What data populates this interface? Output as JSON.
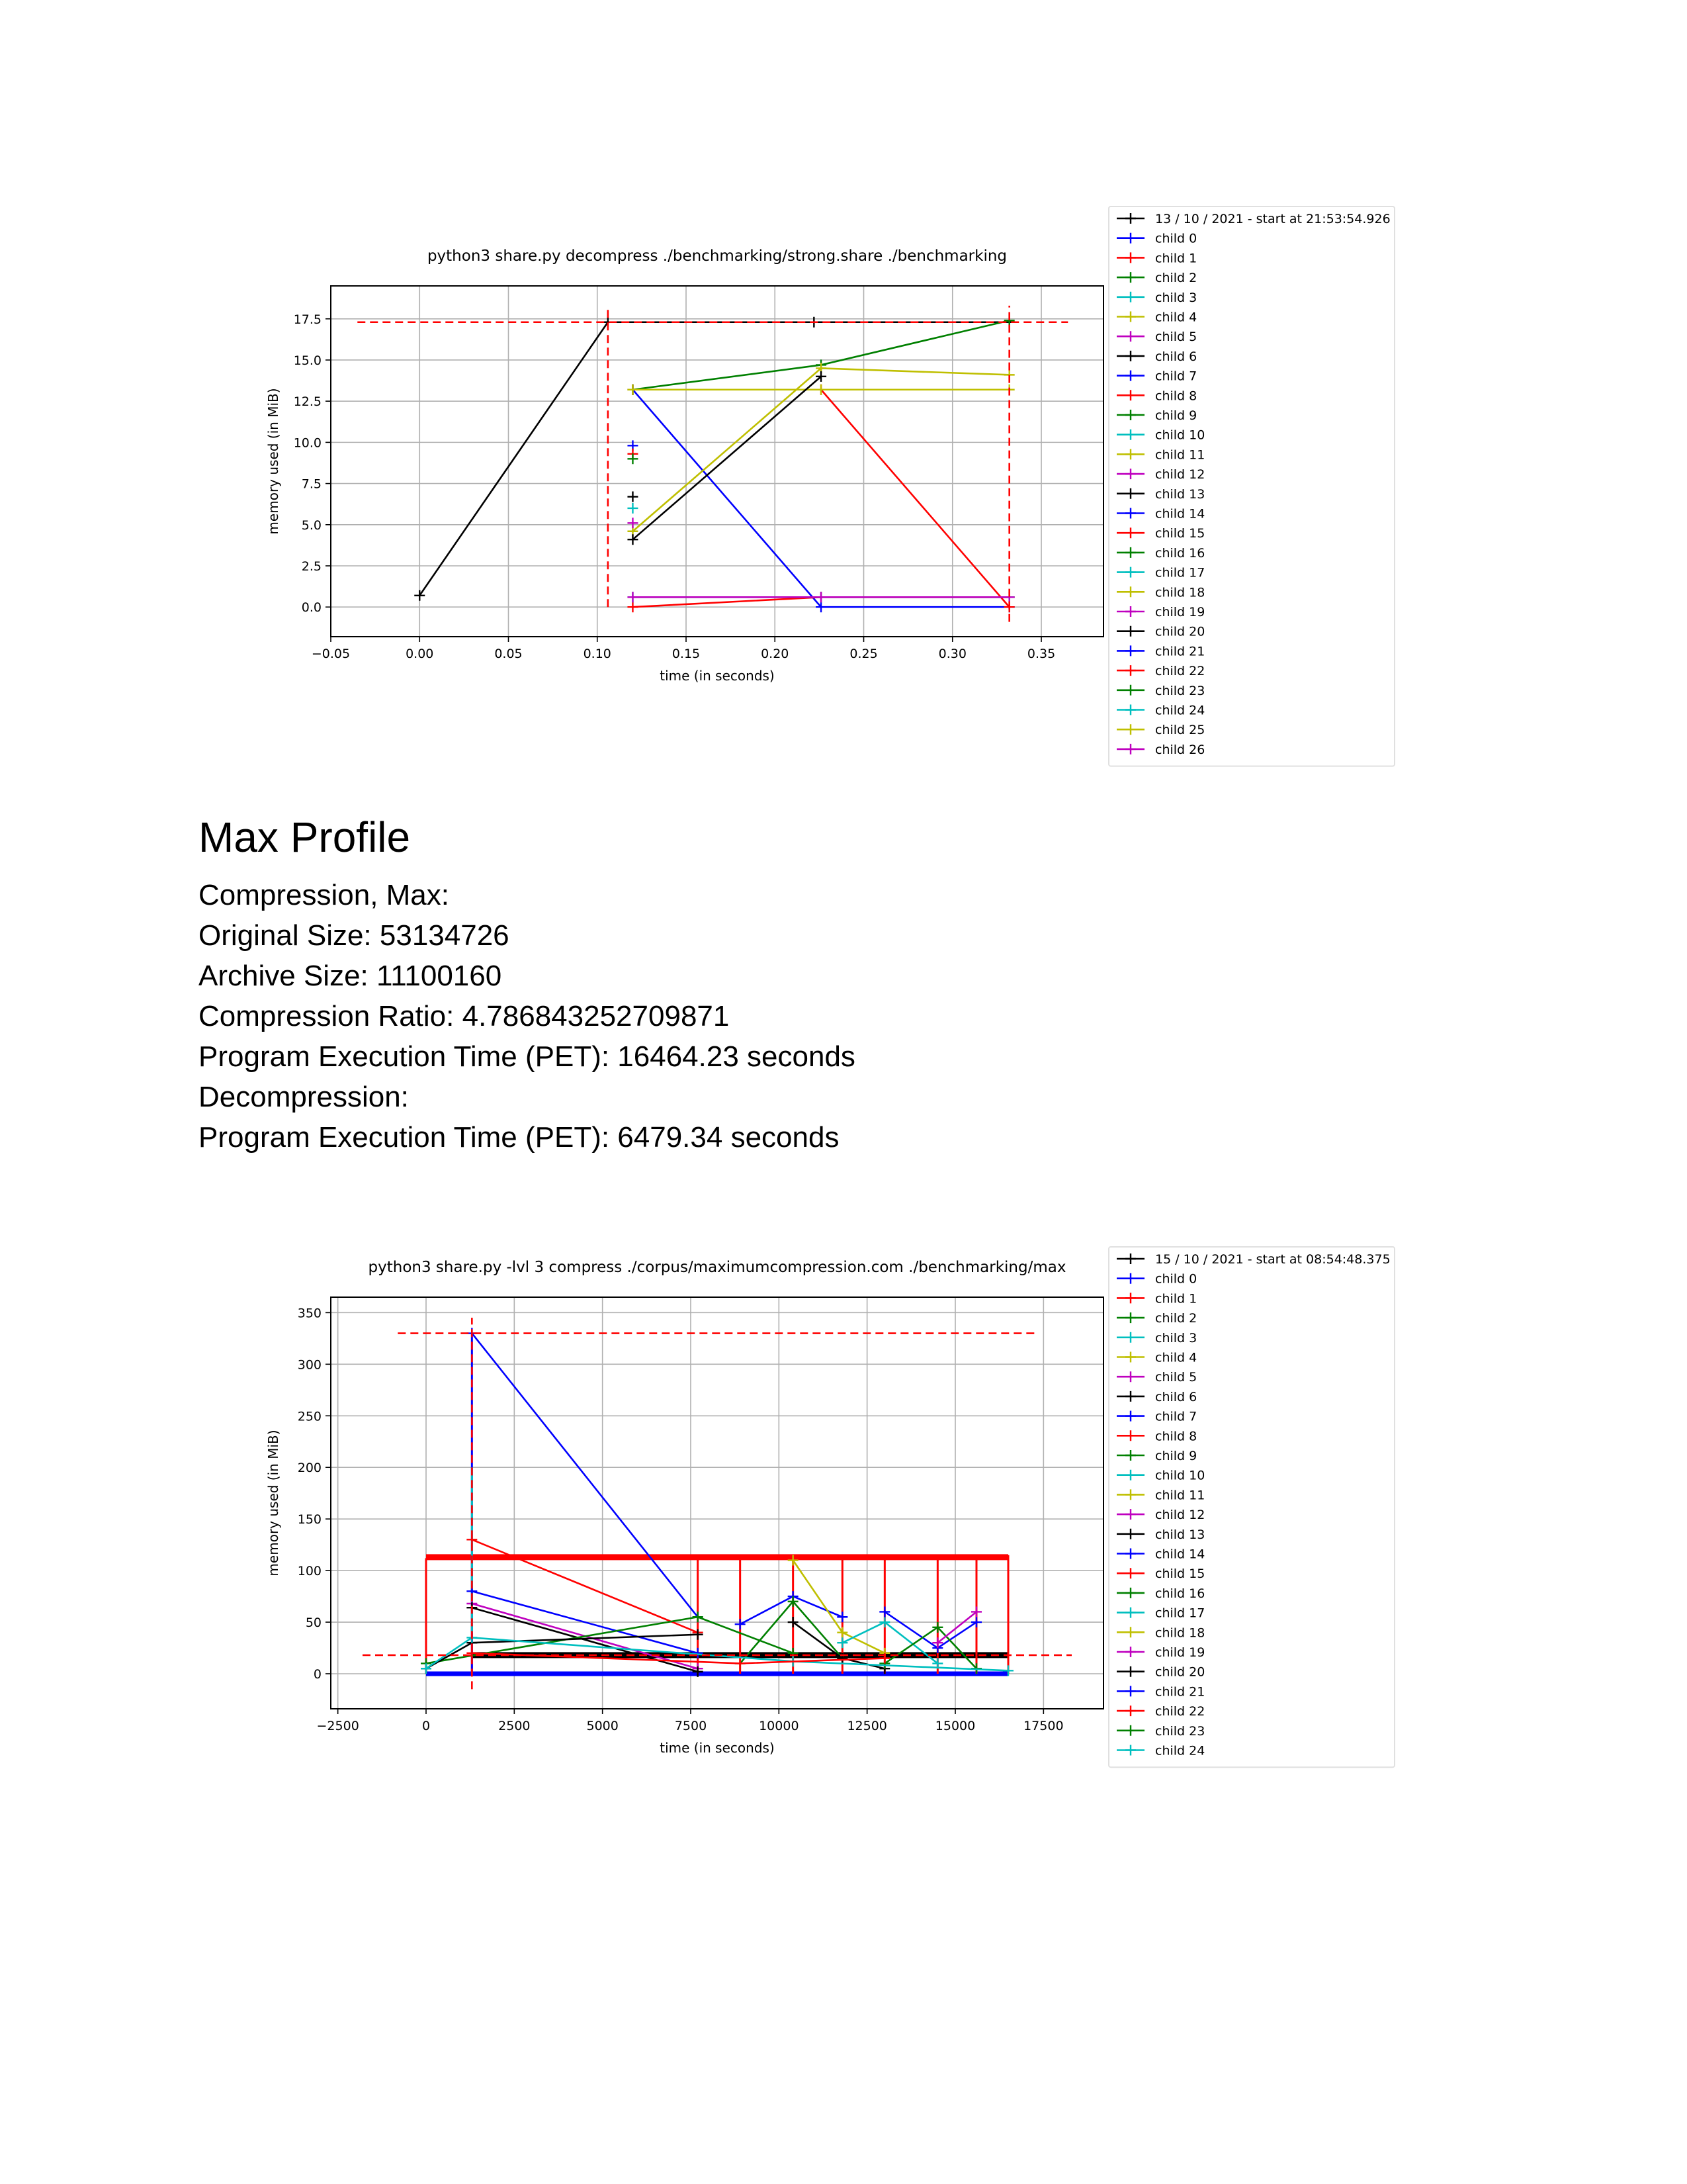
{
  "section": {
    "heading": "Max Profile",
    "lines": [
      "Compression, Max:",
      "Original Size: 53134726",
      "Archive Size: 11100160",
      "Compression Ratio: 4.786843252709871",
      "Program Execution Time (PET): 16464.23 seconds",
      "Decompression:",
      "Program Execution Time (PET): 6479.34 seconds"
    ]
  },
  "chart_data": [
    {
      "type": "line",
      "title": "python3 share.py decompress ./benchmarking/strong.share ./benchmarking",
      "xlabel": "time (in seconds)",
      "ylabel": "memory used (in MiB)",
      "xlim": [
        -0.05,
        0.385
      ],
      "ylim": [
        -1.8,
        19.5
      ],
      "xticks": [
        -0.05,
        0.0,
        0.05,
        0.1,
        0.15,
        0.2,
        0.25,
        0.3,
        0.35
      ],
      "xtick_labels": [
        "−0.05",
        "0.00",
        "0.05",
        "0.10",
        "0.15",
        "0.20",
        "0.25",
        "0.30",
        "0.35"
      ],
      "yticks": [
        0,
        2.5,
        5,
        7.5,
        10,
        12.5,
        15,
        17.5
      ],
      "ytick_labels": [
        "0.0",
        "2.5",
        "5.0",
        "7.5",
        "10.0",
        "12.5",
        "15.0",
        "17.5"
      ],
      "grid": true,
      "legend_placement": "outside-right",
      "legend": [
        "13 / 10 / 2021 - start at 21:53:54.926",
        "child 0",
        "child 1",
        "child 2",
        "child 3",
        "child 4",
        "child 5",
        "child 6",
        "child 7",
        "child 8",
        "child 9",
        "child 10",
        "child 11",
        "child 12",
        "child 13",
        "child 14",
        "child 15",
        "child 16",
        "child 17",
        "child 18",
        "child 19",
        "child 20",
        "child 21",
        "child 22",
        "child 23",
        "child 24",
        "child 25",
        "child 26"
      ],
      "legend_colors": [
        "#000000",
        "#0000ff",
        "#ff0000",
        "#008000",
        "#00bfbf",
        "#bfbf00",
        "#bf00bf",
        "#000000",
        "#0000ff",
        "#ff0000",
        "#008000",
        "#00bfbf",
        "#bfbf00",
        "#bf00bf",
        "#000000",
        "#0000ff",
        "#ff0000",
        "#008000",
        "#00bfbf",
        "#bfbf00",
        "#bf00bf",
        "#000000",
        "#0000ff",
        "#ff0000",
        "#008000",
        "#00bfbf",
        "#bfbf00",
        "#bf00bf"
      ],
      "reference_lines": [
        {
          "orientation": "horizontal",
          "value": 17.3,
          "from": -0.035,
          "to": 0.365,
          "color": "#ff0000"
        },
        {
          "orientation": "vertical",
          "value": 0.106,
          "from": 0.0,
          "to": 18.2,
          "color": "#ff0000"
        },
        {
          "orientation": "vertical",
          "value": 0.332,
          "from": -0.9,
          "to": 18.3,
          "color": "#ff0000"
        }
      ],
      "series": [
        {
          "color": "#000000",
          "x": [
            0.0,
            0.106,
            0.222,
            0.332
          ],
          "y": [
            0.7,
            17.3,
            17.3,
            17.3
          ]
        },
        {
          "color": "#0000ff",
          "x": [
            0.12,
            0.226,
            0.332
          ],
          "y": [
            13.2,
            0.0,
            0.0
          ]
        },
        {
          "color": "#ff0000",
          "x": [
            0.12,
            0.226,
            0.332
          ],
          "y": [
            0.0,
            0.6,
            0.6
          ]
        },
        {
          "color": "#ff0000",
          "x": [
            0.12,
            0.226,
            0.332
          ],
          "y": [
            13.2,
            13.2,
            0.0
          ]
        },
        {
          "color": "#008000",
          "x": [
            0.12,
            0.226,
            0.332
          ],
          "y": [
            13.2,
            14.7,
            17.4
          ]
        },
        {
          "color": "#00bfbf",
          "x": [
            0.12,
            0.226,
            0.332
          ],
          "y": [
            0.6,
            0.6,
            0.6
          ]
        },
        {
          "color": "#bfbf00",
          "x": [
            0.12,
            0.226,
            0.332
          ],
          "y": [
            13.2,
            13.2,
            13.2
          ]
        },
        {
          "color": "#bfbf00",
          "x": [
            0.12,
            0.226,
            0.332
          ],
          "y": [
            4.6,
            14.5,
            14.1
          ]
        },
        {
          "color": "#bf00bf",
          "x": [
            0.12,
            0.226,
            0.332
          ],
          "y": [
            0.6,
            0.6,
            0.6
          ]
        },
        {
          "color": "#000000",
          "x": [
            0.12,
            0.226
          ],
          "y": [
            4.1,
            14.0
          ]
        },
        {
          "color": "#0000ff",
          "x": [
            0.12
          ],
          "y": [
            9.8
          ]
        },
        {
          "color": "#ff0000",
          "x": [
            0.12
          ],
          "y": [
            9.3
          ]
        },
        {
          "color": "#008000",
          "x": [
            0.12
          ],
          "y": [
            9.0
          ]
        },
        {
          "color": "#000000",
          "x": [
            0.12
          ],
          "y": [
            6.7
          ]
        },
        {
          "color": "#00bfbf",
          "x": [
            0.12
          ],
          "y": [
            6.0
          ]
        },
        {
          "color": "#bf00bf",
          "x": [
            0.12
          ],
          "y": [
            5.1
          ]
        }
      ]
    },
    {
      "type": "line",
      "title": "python3 share.py -lvl 3 compress ./corpus/maximumcompression.com ./benchmarking/max",
      "xlabel": "time (in seconds)",
      "ylabel": "memory used (in MiB)",
      "xlim": [
        -2700,
        19200
      ],
      "ylim": [
        -34,
        365
      ],
      "xticks": [
        -2500,
        0,
        2500,
        5000,
        7500,
        10000,
        12500,
        15000,
        17500
      ],
      "xtick_labels": [
        "−2500",
        "0",
        "2500",
        "5000",
        "7500",
        "10000",
        "12500",
        "15000",
        "17500"
      ],
      "yticks": [
        0,
        50,
        100,
        150,
        200,
        250,
        300,
        350
      ],
      "ytick_labels": [
        "0",
        "50",
        "100",
        "150",
        "200",
        "250",
        "300",
        "350"
      ],
      "grid": true,
      "legend_placement": "outside-right",
      "legend": [
        "15 / 10 / 2021 - start at 08:54:48.375",
        "child 0",
        "child 1",
        "child 2",
        "child 3",
        "child 4",
        "child 5",
        "child 6",
        "child 7",
        "child 8",
        "child 9",
        "child 10",
        "child 11",
        "child 12",
        "child 13",
        "child 14",
        "child 15",
        "child 16",
        "child 17",
        "child 18",
        "child 19",
        "child 20",
        "child 21",
        "child 22",
        "child 23",
        "child 24"
      ],
      "legend_colors": [
        "#000000",
        "#0000ff",
        "#ff0000",
        "#008000",
        "#00bfbf",
        "#bfbf00",
        "#bf00bf",
        "#000000",
        "#0000ff",
        "#ff0000",
        "#008000",
        "#00bfbf",
        "#bfbf00",
        "#bf00bf",
        "#000000",
        "#0000ff",
        "#ff0000",
        "#008000",
        "#00bfbf",
        "#bfbf00",
        "#bf00bf",
        "#000000",
        "#0000ff",
        "#ff0000",
        "#008000",
        "#00bfbf"
      ],
      "reference_lines": [
        {
          "orientation": "horizontal",
          "value": 330,
          "from": -800,
          "to": 17300,
          "color": "#ff0000"
        },
        {
          "orientation": "horizontal",
          "value": 18,
          "from": -1800,
          "to": 18300,
          "color": "#ff0000"
        },
        {
          "orientation": "vertical",
          "value": 1300,
          "from": -15,
          "to": 345,
          "color": "#ff0000"
        }
      ],
      "series": [
        {
          "color": "#ff0000",
          "width": 9,
          "markers": false,
          "x": [
            0,
            16500
          ],
          "y": [
            113,
            113
          ]
        },
        {
          "color": "#000000",
          "width": 9,
          "markers": false,
          "x": [
            1300,
            16500
          ],
          "y": [
            18,
            18
          ]
        },
        {
          "color": "#0000ff",
          "width": 7,
          "markers": false,
          "x": [
            0,
            16500
          ],
          "y": [
            0,
            0
          ]
        },
        {
          "color": "#ff0000",
          "width": 3,
          "markers": false,
          "x": [
            0,
            0
          ],
          "y": [
            0,
            112
          ]
        },
        {
          "color": "#ff0000",
          "width": 3,
          "markers": false,
          "x": [
            1300,
            1300
          ],
          "y": [
            0,
            115
          ]
        },
        {
          "color": "#ff0000",
          "width": 3,
          "markers": false,
          "x": [
            7700,
            7700
          ],
          "y": [
            0,
            115
          ]
        },
        {
          "color": "#ff0000",
          "width": 3,
          "markers": false,
          "x": [
            8900,
            8900
          ],
          "y": [
            0,
            115
          ]
        },
        {
          "color": "#ff0000",
          "width": 3,
          "markers": false,
          "x": [
            10400,
            10400
          ],
          "y": [
            0,
            115
          ]
        },
        {
          "color": "#ff0000",
          "width": 3,
          "markers": false,
          "x": [
            11800,
            11800
          ],
          "y": [
            0,
            115
          ]
        },
        {
          "color": "#ff0000",
          "width": 3,
          "markers": false,
          "x": [
            13000,
            13000
          ],
          "y": [
            0,
            115
          ]
        },
        {
          "color": "#ff0000",
          "width": 3,
          "markers": false,
          "x": [
            14500,
            14500
          ],
          "y": [
            0,
            115
          ]
        },
        {
          "color": "#ff0000",
          "width": 3,
          "markers": false,
          "x": [
            15600,
            15600
          ],
          "y": [
            0,
            115
          ]
        },
        {
          "color": "#ff0000",
          "width": 3,
          "markers": false,
          "x": [
            16500,
            16500
          ],
          "y": [
            0,
            115
          ]
        },
        {
          "color": "#0000ff",
          "width": 3,
          "markers": false,
          "x": [
            1300,
            1300
          ],
          "y": [
            0,
            330
          ]
        },
        {
          "color": "#00bfbf",
          "width": 3,
          "markers": false,
          "x": [
            1300,
            1300
          ],
          "y": [
            40,
            200
          ]
        },
        {
          "color": "#0000ff",
          "x": [
            1300,
            7700
          ],
          "y": [
            330,
            55
          ]
        },
        {
          "color": "#ff0000",
          "x": [
            1300,
            7700
          ],
          "y": [
            130,
            40
          ]
        },
        {
          "color": "#bf00bf",
          "x": [
            1300,
            7700
          ],
          "y": [
            68,
            5
          ]
        },
        {
          "color": "#000000",
          "x": [
            1300,
            7700
          ],
          "y": [
            64,
            2
          ]
        },
        {
          "color": "#0000ff",
          "x": [
            1300,
            7700
          ],
          "y": [
            80,
            20
          ]
        },
        {
          "color": "#008000",
          "x": [
            0,
            7700,
            10400
          ],
          "y": [
            10,
            55,
            20
          ]
        },
        {
          "color": "#000000",
          "x": [
            0,
            1300,
            7700
          ],
          "y": [
            5,
            30,
            38
          ]
        },
        {
          "color": "#0000ff",
          "x": [
            8900,
            10400,
            11800
          ],
          "y": [
            48,
            75,
            55
          ]
        },
        {
          "color": "#008000",
          "x": [
            8900,
            10400,
            11800
          ],
          "y": [
            10,
            70,
            15
          ]
        },
        {
          "color": "#bfbf00",
          "x": [
            10400,
            11800,
            13000
          ],
          "y": [
            110,
            40,
            20
          ]
        },
        {
          "color": "#000000",
          "x": [
            10400,
            11800,
            13000
          ],
          "y": [
            50,
            15,
            5
          ]
        },
        {
          "color": "#00bfbf",
          "x": [
            11800,
            13000,
            14500
          ],
          "y": [
            30,
            50,
            10
          ]
        },
        {
          "color": "#0000ff",
          "x": [
            13000,
            14500,
            15600
          ],
          "y": [
            60,
            25,
            50
          ]
        },
        {
          "color": "#008000",
          "x": [
            13000,
            14500,
            15600
          ],
          "y": [
            10,
            45,
            5
          ]
        },
        {
          "color": "#bf00bf",
          "x": [
            14500,
            15600
          ],
          "y": [
            30,
            60
          ]
        },
        {
          "color": "#00bfbf",
          "x": [
            0,
            1300,
            10400,
            16500
          ],
          "y": [
            5,
            35,
            12,
            3
          ]
        },
        {
          "color": "#ff0000",
          "x": [
            1300,
            8900,
            13000
          ],
          "y": [
            20,
            10,
            15
          ]
        }
      ]
    }
  ]
}
